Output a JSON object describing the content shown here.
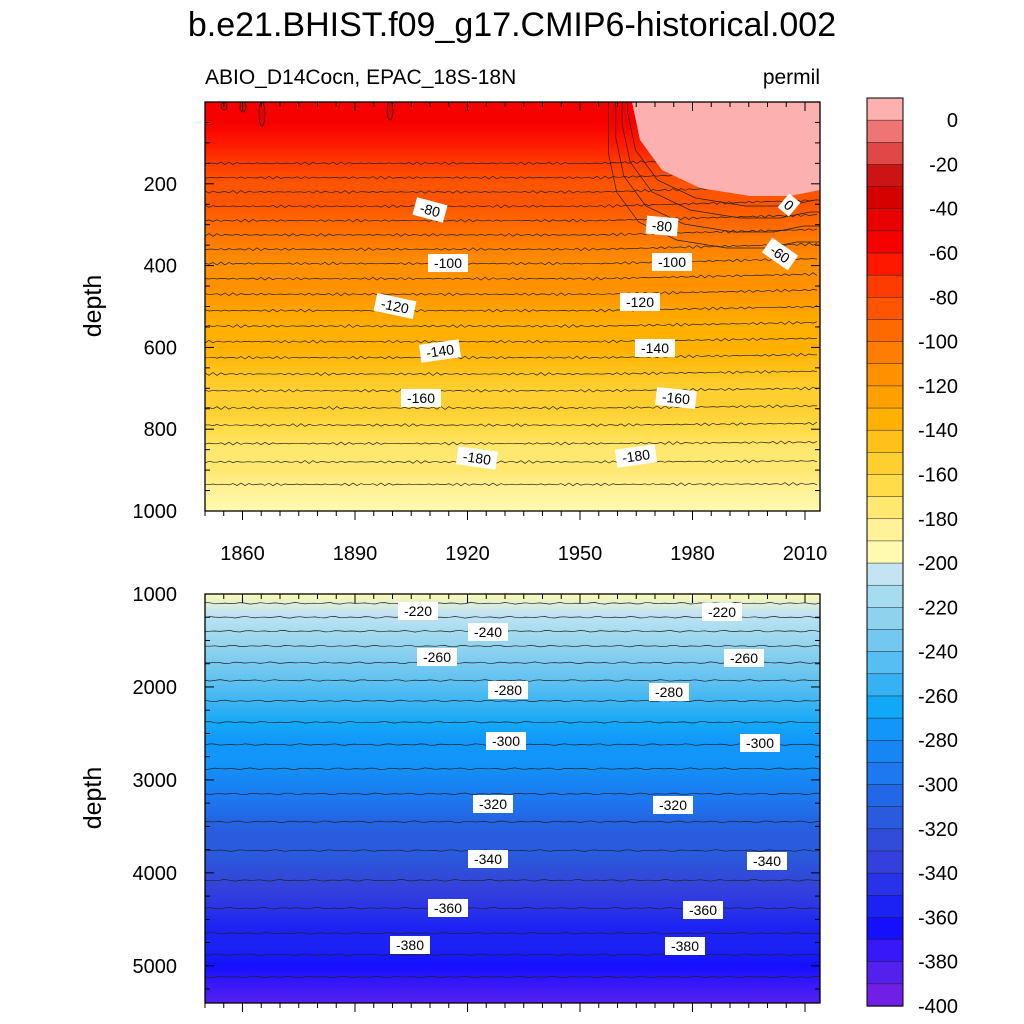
{
  "chart_data": {
    "type": "contour",
    "title": "b.e21.BHIST.f09_g17.CMIP6-historical.002",
    "subtitle_left": "ABIO_D14Cocn, EPAC_18S-18N",
    "subtitle_right": "permil",
    "xlabel": "",
    "x_range": [
      1850,
      2014
    ],
    "x_ticks": [
      "1860",
      "1890",
      "1920",
      "1950",
      "1980",
      "2010"
    ],
    "panels": [
      {
        "name": "upper",
        "ylabel": "depth",
        "y_range": [
          0,
          1000
        ],
        "y_ticks": [
          "200",
          "400",
          "600",
          "800",
          "1000"
        ],
        "contour_labels": [
          "-80",
          "-80",
          "-100",
          "-100",
          "-120",
          "-120",
          "-140",
          "-140",
          "-160",
          "-160",
          "-180",
          "-180",
          "0",
          "-60"
        ]
      },
      {
        "name": "lower",
        "ylabel": "depth",
        "y_range": [
          1000,
          5400
        ],
        "y_ticks": [
          "1000",
          "2000",
          "3000",
          "4000",
          "5000"
        ],
        "contour_labels": [
          "-220",
          "-220",
          "-240",
          "-260",
          "-260",
          "-280",
          "-280",
          "-300",
          "-300",
          "-320",
          "-320",
          "-340",
          "-340",
          "-360",
          "-360",
          "-380",
          "-380"
        ]
      }
    ],
    "colorbar": {
      "levels": [
        0,
        -10,
        -20,
        -30,
        -40,
        -50,
        -60,
        -70,
        -80,
        -90,
        -100,
        -110,
        -120,
        -130,
        -140,
        -150,
        -160,
        -170,
        -180,
        -190,
        -200,
        -210,
        -220,
        -230,
        -240,
        -250,
        -260,
        -270,
        -280,
        -290,
        -300,
        -310,
        -320,
        -330,
        -340,
        -350,
        -360,
        -370,
        -380,
        -390,
        -400
      ],
      "labels": [
        "0",
        "-20",
        "-40",
        "-60",
        "-80",
        "-100",
        "-120",
        "-140",
        "-160",
        "-180",
        "-200",
        "-220",
        "-240",
        "-260",
        "-280",
        "-300",
        "-320",
        "-340",
        "-360",
        "-380",
        "-400"
      ],
      "colors": [
        "#fdb0b0",
        "#ef7474",
        "#e04848",
        "#cd1414",
        "#d50000",
        "#e80000",
        "#f70000",
        "#ff1800",
        "#ff3c00",
        "#ff5500",
        "#ff6a00",
        "#ff7e00",
        "#ff9000",
        "#ffa000",
        "#ffb000",
        "#ffc018",
        "#ffcf30",
        "#ffdc48",
        "#ffe870",
        "#fff298",
        "#fffab0",
        "#c4e4f4",
        "#a6dcf0",
        "#8ed2ee",
        "#72c8f0",
        "#56bef2",
        "#36b2f4",
        "#12a8f8",
        "#1296fa",
        "#1686f4",
        "#1e78f0",
        "#2268e6",
        "#2a5ade",
        "#304cd8",
        "#3440dc",
        "#2832e8",
        "#1c22f4",
        "#1410ff",
        "#3818f8",
        "#5420ee",
        "#7020e6"
      ]
    }
  }
}
